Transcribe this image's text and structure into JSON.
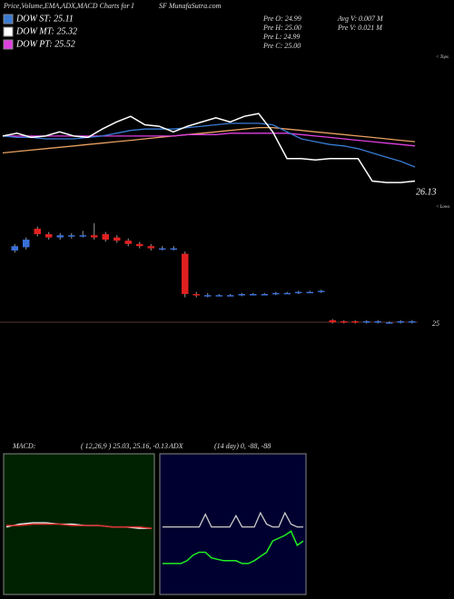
{
  "header": {
    "title_left": "Price,Volume,EMA,ADX,MACD Charts for I",
    "title_right": "SF MunafaSutra.com",
    "legend": [
      {
        "label": "DOW ST: 25.11",
        "color": "#3a7bd5"
      },
      {
        "label": "DOW MT: 25.32",
        "color": "#ffffff"
      },
      {
        "label": "DOW PT: 25.52",
        "color": "#e040e0"
      }
    ],
    "pre": [
      "Pre  O: 24.99",
      "Pre  H: 25.00",
      "Pre  L: 24.99",
      "Pre  C: 25.00"
    ],
    "avg": [
      "Avg V: 0.007 M",
      "Pre  V: 0.021 M"
    ]
  },
  "chart_data": [
    {
      "type": "line",
      "ylim": [
        0,
        100
      ],
      "annotations": [
        "26.13",
        "< Tops",
        "< Lows"
      ],
      "series": [
        {
          "color": "#e8a060",
          "values": [
            30,
            31,
            32,
            33,
            34,
            35,
            36,
            37,
            38,
            39,
            40,
            41,
            42,
            43,
            44,
            45,
            46,
            47,
            48,
            48,
            47,
            46,
            45,
            44,
            43,
            42,
            41,
            40,
            39,
            38
          ]
        },
        {
          "color": "#e040e0",
          "values": [
            42,
            42,
            42,
            42,
            42,
            42,
            42,
            42,
            42,
            42,
            42,
            42,
            42,
            43,
            43,
            43,
            44,
            44,
            44,
            44,
            44,
            43,
            42,
            41,
            40,
            39,
            38,
            37,
            36,
            35
          ]
        },
        {
          "color": "#3a7bd5",
          "values": [
            42,
            41,
            41,
            40,
            40,
            40,
            41,
            42,
            44,
            46,
            47,
            47,
            47,
            48,
            49,
            50,
            51,
            51,
            51,
            50,
            45,
            40,
            38,
            36,
            35,
            33,
            30,
            27,
            24,
            20
          ]
        },
        {
          "color": "#ffffff",
          "values": [
            42,
            44,
            41,
            42,
            45,
            42,
            41,
            47,
            52,
            56,
            50,
            49,
            45,
            49,
            52,
            55,
            52,
            56,
            58,
            45,
            26,
            26,
            25,
            26,
            26,
            26,
            10,
            9,
            9,
            10
          ]
        }
      ]
    },
    {
      "type": "candlestick",
      "ylim": [
        0,
        100
      ],
      "up_color": "#3a6fd8",
      "down_color": "#e02020",
      "annotations": [
        "25"
      ],
      "open": [
        70,
        73,
        90,
        85,
        82,
        83,
        84,
        84,
        85,
        82,
        79,
        76,
        74,
        72,
        72,
        67,
        30,
        29,
        29,
        29,
        29,
        30,
        30,
        30,
        31,
        31,
        32,
        32,
        6,
        5,
        5,
        4,
        4,
        4,
        4,
        4
      ],
      "high": [
        76,
        82,
        92,
        87,
        86,
        86,
        88,
        95,
        87,
        84,
        81,
        78,
        76,
        74,
        74,
        69,
        32,
        31,
        30,
        30,
        31,
        31,
        31,
        32,
        32,
        33,
        33,
        34,
        7,
        6,
        6,
        6,
        6,
        5,
        6,
        6
      ],
      "low": [
        68,
        71,
        83,
        80,
        80,
        81,
        82,
        80,
        78,
        77,
        74,
        72,
        70,
        70,
        70,
        27,
        27,
        27,
        28,
        28,
        28,
        29,
        29,
        29,
        30,
        30,
        31,
        31,
        3,
        3,
        3,
        3,
        3,
        3,
        3,
        3
      ],
      "close": [
        74,
        80,
        85,
        82,
        84,
        84,
        84,
        82,
        80,
        79,
        76,
        74,
        72,
        72,
        72,
        30,
        29,
        29,
        29,
        29,
        30,
        30,
        30,
        31,
        31,
        32,
        32,
        33,
        4,
        4,
        4,
        5,
        5,
        4,
        5,
        5
      ]
    },
    {
      "type": "line",
      "title": "MACD:",
      "subtitle": "( 12,26,9 ) 25.03, 25.16, -0.13",
      "background": "#002200",
      "ylim": [
        0,
        100
      ],
      "series": [
        {
          "color": "#ffffff",
          "values": [
            48,
            50,
            51,
            51,
            50,
            50,
            49,
            49,
            48,
            48,
            47,
            47
          ]
        },
        {
          "color": "#e03030",
          "values": [
            49,
            49,
            50,
            50,
            50,
            49,
            49,
            49,
            48,
            48,
            48,
            47
          ]
        }
      ]
    },
    {
      "type": "line",
      "title": "ADX",
      "subtitle": "(14 day) 0, -88, -88",
      "background": "#000030",
      "ylim": [
        0,
        100
      ],
      "series": [
        {
          "color": "#cccccc",
          "values": [
            48,
            48,
            48,
            48,
            48,
            48,
            48,
            57,
            48,
            48,
            48,
            48,
            56,
            48,
            48,
            48,
            58,
            50,
            48,
            48,
            58,
            50,
            48,
            48
          ]
        },
        {
          "color": "#22ee22",
          "values": [
            22,
            22,
            22,
            22,
            24,
            28,
            30,
            30,
            26,
            25,
            24,
            24,
            24,
            22,
            22,
            24,
            27,
            30,
            38,
            40,
            42,
            45,
            35,
            38
          ]
        }
      ]
    }
  ]
}
